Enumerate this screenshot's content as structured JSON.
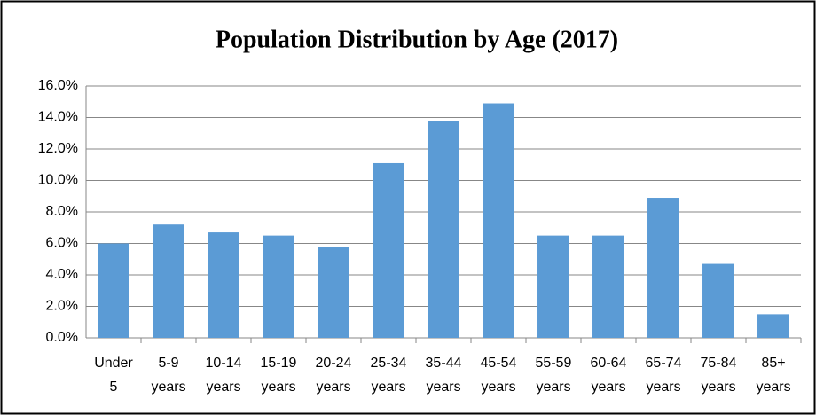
{
  "chart_data": {
    "type": "bar",
    "title": "Population Distribution by Age (2017)",
    "categories": [
      "Under 5",
      "5-9 years",
      "10-14 years",
      "15-19 years",
      "20-24 years",
      "25-34 years",
      "35-44 years",
      "45-54 years",
      "55-59 years",
      "60-64 years",
      "65-74 years",
      "75-84 years",
      "85+ years"
    ],
    "values": [
      6.0,
      7.2,
      6.7,
      6.5,
      5.8,
      11.1,
      13.8,
      14.9,
      6.5,
      6.5,
      8.9,
      4.7,
      1.5
    ],
    "color": "#5b9bd5",
    "ylim": [
      0,
      16
    ],
    "yticks": [
      {
        "value": 0,
        "label": "0.0%"
      },
      {
        "value": 2,
        "label": "2.0%"
      },
      {
        "value": 4,
        "label": "4.0%"
      },
      {
        "value": 6,
        "label": "6.0%"
      },
      {
        "value": 8,
        "label": "8.0%"
      },
      {
        "value": 10,
        "label": "10.0%"
      },
      {
        "value": 12,
        "label": "12.0%"
      },
      {
        "value": 14,
        "label": "14.0%"
      },
      {
        "value": 16,
        "label": "16.0%"
      }
    ],
    "grid": true
  }
}
